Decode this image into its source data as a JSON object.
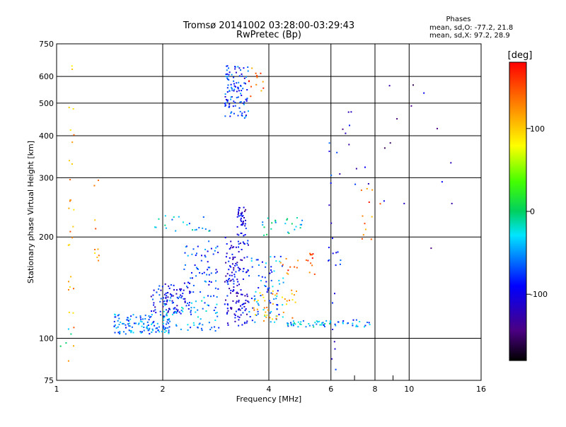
{
  "chart_data": {
    "type": "scatter",
    "title": "Tromsø 20141002 03:28:00-03:29:43",
    "subtitle": "RwPretec (Bp)",
    "xlabel": "Frequency [MHz]",
    "ylabel": "Stationary phase Virtual Height [km]",
    "x_scale": "log",
    "y_scale": "log",
    "xlim": [
      1,
      16
    ],
    "ylim": [
      75,
      750
    ],
    "x_ticks": [
      "1",
      "2",
      "4",
      "6",
      "8",
      "10",
      "16"
    ],
    "y_ticks": [
      "750",
      "600",
      "500",
      "400",
      "300",
      "200",
      "100",
      "75"
    ],
    "grid": true,
    "stats": {
      "heading": "Phases",
      "line1": "mean, sd,O: -77.2, 21.8",
      "line2": "mean, sd,X:  97.2, 28.9"
    },
    "colorbar": {
      "label": "[deg]",
      "range": [
        -180,
        180
      ],
      "ticks": [
        "100",
        "0",
        "-100"
      ]
    },
    "clusters": [
      {
        "f": [
          1.45,
          2.1
        ],
        "h": [
          103,
          118
        ],
        "phase": -55,
        "n": 120
      },
      {
        "f": [
          1.85,
          2.4
        ],
        "h": [
          118,
          145
        ],
        "phase": -95,
        "n": 90
      },
      {
        "f": [
          2.0,
          2.9
        ],
        "h": [
          105,
          135
        ],
        "phase": -50,
        "n": 80
      },
      {
        "f": [
          2.3,
          2.9
        ],
        "h": [
          135,
          195
        ],
        "phase": -75,
        "n": 60
      },
      {
        "f": [
          1.9,
          2.75
        ],
        "h": [
          208,
          232
        ],
        "phase": -40,
        "n": 22
      },
      {
        "f": [
          3.0,
          3.5
        ],
        "h": [
          108,
          200
        ],
        "phase": -105,
        "n": 150
      },
      {
        "f": [
          3.25,
          3.45
        ],
        "h": [
          200,
          245
        ],
        "phase": -110,
        "n": 40
      },
      {
        "f": [
          3.5,
          4.4
        ],
        "h": [
          110,
          175
        ],
        "phase": -60,
        "n": 80
      },
      {
        "f": [
          3.6,
          4.8
        ],
        "h": [
          112,
          140
        ],
        "phase": 110,
        "n": 40
      },
      {
        "f": [
          4.3,
          5.4
        ],
        "h": [
          155,
          180
        ],
        "phase": 150,
        "n": 22
      },
      {
        "f": [
          3.0,
          3.5
        ],
        "h": [
          450,
          650
        ],
        "phase": -80,
        "n": 110
      },
      {
        "f": [
          3.5,
          3.9
        ],
        "h": [
          520,
          640
        ],
        "phase": 140,
        "n": 14
      },
      {
        "f": [
          4.5,
          6.0
        ],
        "h": [
          108,
          113
        ],
        "phase": -40,
        "n": 40
      },
      {
        "f": [
          6.1,
          7.8
        ],
        "h": [
          108,
          114
        ],
        "phase": -55,
        "n": 22
      },
      {
        "f": [
          3.8,
          5.0
        ],
        "h": [
          200,
          230
        ],
        "phase": -25,
        "n": 24
      },
      {
        "f": [
          1.08,
          1.12
        ],
        "h": [
          85,
          650
        ],
        "phase": 115,
        "n": 30
      },
      {
        "f": [
          1.28,
          1.32
        ],
        "h": [
          140,
          300
        ],
        "phase": 120,
        "n": 10
      },
      {
        "f": [
          5.9,
          6.4
        ],
        "h": [
          80,
          420
        ],
        "phase": -95,
        "n": 25
      },
      {
        "f": [
          6.4,
          7.7
        ],
        "h": [
          280,
          480
        ],
        "phase": -110,
        "n": 10
      },
      {
        "f": [
          7.3,
          8.3
        ],
        "h": [
          190,
          280
        ],
        "phase": 140,
        "n": 12
      },
      {
        "f": [
          8.3,
          15.0
        ],
        "h": [
          160,
          600
        ],
        "phase": -120,
        "n": 14
      },
      {
        "f": [
          1.02,
          1.1
        ],
        "h": [
          93,
          110
        ],
        "phase": -20,
        "n": 4
      }
    ]
  }
}
